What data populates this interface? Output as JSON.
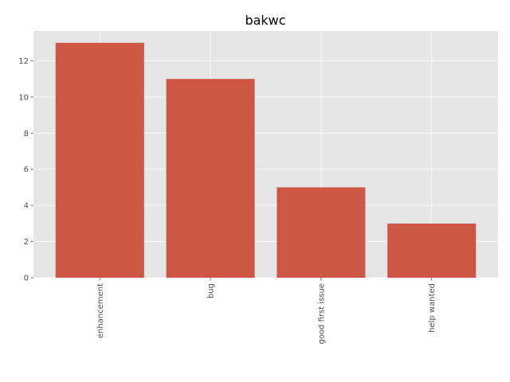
{
  "chart_data": {
    "type": "bar",
    "title": "bakwc",
    "categories": [
      "enhancement",
      "bug",
      "good first issue",
      "help wanted"
    ],
    "values": [
      13,
      11,
      5,
      3
    ],
    "ylim": [
      0,
      13.65
    ],
    "yticks": [
      0,
      2,
      4,
      6,
      8,
      10,
      12
    ],
    "xlabel": "",
    "ylabel": "",
    "grid": true,
    "colors": {
      "bar": "#cc5745",
      "plot_background": "#e5e5e5",
      "grid": "#ffffff",
      "tick": "#555555"
    }
  }
}
